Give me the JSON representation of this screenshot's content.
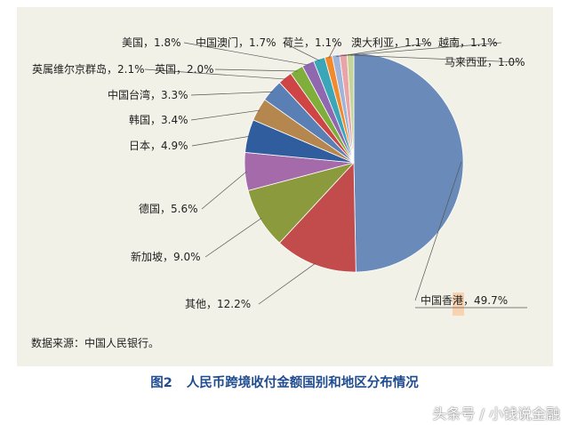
{
  "chart_data": {
    "type": "pie",
    "slices": [
      {
        "label": "中国香港",
        "value": 49.7,
        "display": "中国香港，49.7%",
        "color": "#6a8bba"
      },
      {
        "label": "其他",
        "value": 12.2,
        "display": "其他，12.2%",
        "color": "#c24b4b"
      },
      {
        "label": "新加坡",
        "value": 9.0,
        "display": "新加坡，9.0%",
        "color": "#8a9a3c"
      },
      {
        "label": "德国",
        "value": 5.6,
        "display": "德国，5.6%",
        "color": "#a46aaa"
      },
      {
        "label": "日本",
        "value": 4.9,
        "display": "日本，4.9%",
        "color": "#2f5d9e"
      },
      {
        "label": "韩国",
        "value": 3.4,
        "display": "韩国，3.4%",
        "color": "#b5874f"
      },
      {
        "label": "中国台湾",
        "value": 3.3,
        "display": "中国台湾，3.3%",
        "color": "#5a7fb5"
      },
      {
        "label": "英属维尔京群岛",
        "value": 2.1,
        "display": "英属维尔京群岛，2.1%",
        "color": "#cf4545"
      },
      {
        "label": "英国",
        "value": 2.0,
        "display": "英国，2.0%",
        "color": "#7fae3a"
      },
      {
        "label": "美国",
        "value": 1.8,
        "display": "美国，1.8%",
        "color": "#8f68b0"
      },
      {
        "label": "中国澳门",
        "value": 1.7,
        "display": "中国澳门，1.7%",
        "color": "#3aa6b8"
      },
      {
        "label": "荷兰",
        "value": 1.1,
        "display": "荷兰，1.1%",
        "color": "#f08a2c"
      },
      {
        "label": "澳大利亚",
        "value": 1.1,
        "display": "澳大利亚，1.1%",
        "color": "#9fb4d8"
      },
      {
        "label": "越南",
        "value": 1.1,
        "display": "越南，1.1%",
        "color": "#e8a4a6"
      },
      {
        "label": "马来西亚",
        "value": 1.0,
        "display": "马来西亚，1.0%",
        "color": "#c6d49a"
      }
    ],
    "highlight_color": "#f9d3b0"
  },
  "source_note": "数据来源：中国人民银行。",
  "caption": {
    "figure_no": "图2",
    "title": "人民币跨境收付金额国别和地区分布情况"
  },
  "watermark": "头条号 / 小钱说金融"
}
